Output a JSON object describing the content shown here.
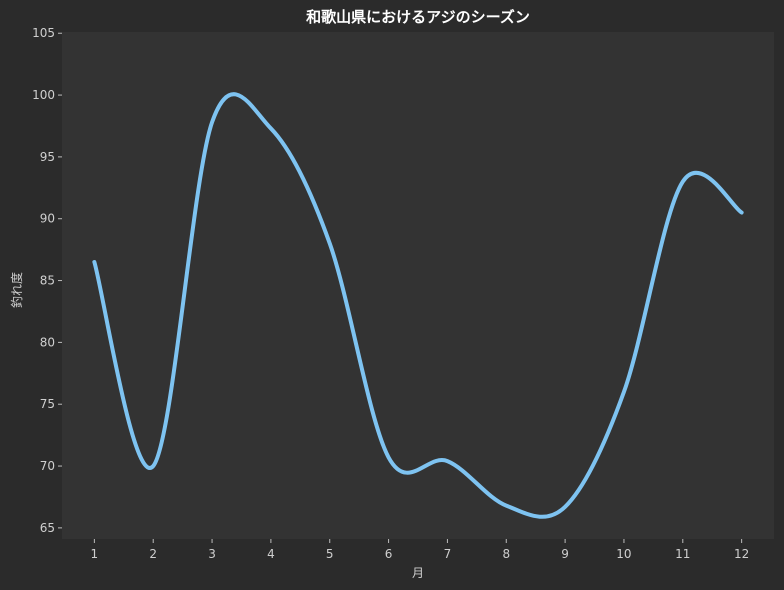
{
  "chart_data": {
    "type": "line",
    "title": "和歌山県におけるアジのシーズン",
    "xlabel": "月",
    "ylabel": "釣れ度",
    "x": [
      1,
      2,
      3,
      4,
      5,
      6,
      7,
      8,
      9,
      10,
      11,
      12
    ],
    "series": [
      {
        "values": [
          86.5,
          70.0,
          97.8,
          97.3,
          88.0,
          70.7,
          70.4,
          66.8,
          66.7,
          76.0,
          93.0,
          90.5
        ]
      }
    ],
    "xlim": [
      0.45,
      12.55
    ],
    "ylim": [
      64.1,
      105.1
    ],
    "yticks": [
      65,
      70,
      75,
      80,
      85,
      90,
      95,
      100,
      105
    ],
    "xticks": [
      1,
      2,
      3,
      4,
      5,
      6,
      7,
      8,
      9,
      10,
      11,
      12
    ],
    "grid": false,
    "colors": {
      "line": "#7ec3f1",
      "plot_bg": "#333333",
      "page_bg": "#2b2b2b"
    }
  }
}
